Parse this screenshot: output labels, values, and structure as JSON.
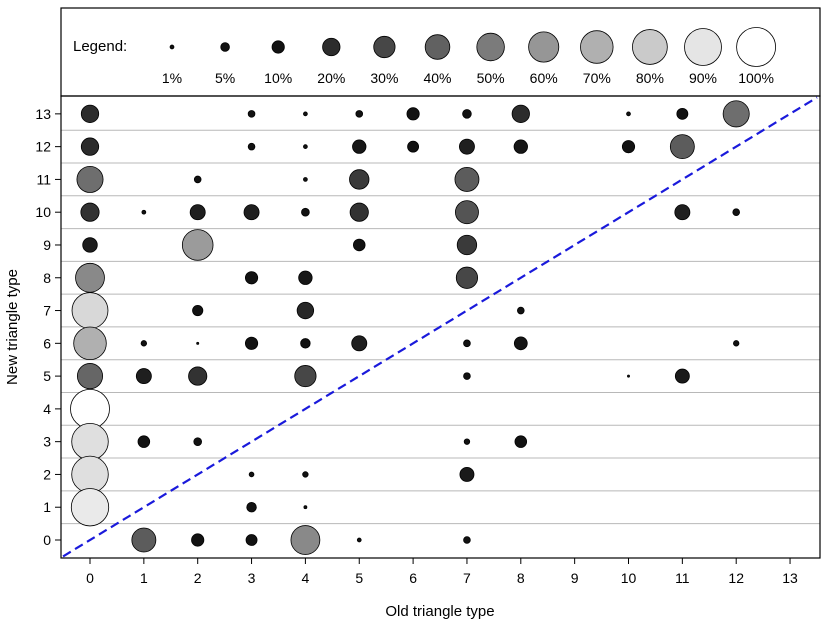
{
  "chart_data": {
    "type": "scatter",
    "xlabel": "Old triangle type",
    "ylabel": "New triangle type",
    "xlim": [
      -0.5,
      13.5
    ],
    "ylim": [
      -0.5,
      13.5
    ],
    "x_ticks": [
      0,
      1,
      2,
      3,
      4,
      5,
      6,
      7,
      8,
      9,
      10,
      11,
      12,
      13
    ],
    "y_ticks": [
      0,
      1,
      2,
      3,
      4,
      5,
      6,
      7,
      8,
      9,
      10,
      11,
      12,
      13
    ],
    "x_tick_labels": [
      "0",
      "1",
      "2",
      "3",
      "4",
      "5",
      "6",
      "7",
      "8",
      "9",
      "10",
      "11",
      "12",
      "13"
    ],
    "y_tick_labels": [
      "0",
      "1",
      "2",
      "3",
      "4",
      "5",
      "6",
      "7",
      "8",
      "9",
      "10",
      "11",
      "12",
      "13"
    ],
    "grid": "horizontal",
    "diagonal_line": {
      "style": "dashed",
      "color": "#1a1adb",
      "from": [
        -0.5,
        -0.5
      ],
      "to": [
        13.5,
        13.5
      ]
    },
    "legend": {
      "title": "Legend:",
      "placement": "top",
      "entries": [
        {
          "label": "1%",
          "value": 1
        },
        {
          "label": "5%",
          "value": 5
        },
        {
          "label": "10%",
          "value": 10
        },
        {
          "label": "20%",
          "value": 20
        },
        {
          "label": "30%",
          "value": 30
        },
        {
          "label": "40%",
          "value": 40
        },
        {
          "label": "50%",
          "value": 50
        },
        {
          "label": "60%",
          "value": 60
        },
        {
          "label": "70%",
          "value": 70
        },
        {
          "label": "80%",
          "value": 80
        },
        {
          "label": "90%",
          "value": 90
        },
        {
          "label": "100%",
          "value": 100
        }
      ]
    },
    "encoding": "bubble area and grayscale both scale with percentage",
    "points": [
      {
        "x": 0,
        "y": 13,
        "v": 20
      },
      {
        "x": 3,
        "y": 13,
        "v": 3
      },
      {
        "x": 4,
        "y": 13,
        "v": 1
      },
      {
        "x": 5,
        "y": 13,
        "v": 3
      },
      {
        "x": 6,
        "y": 13,
        "v": 10
      },
      {
        "x": 7,
        "y": 13,
        "v": 5
      },
      {
        "x": 8,
        "y": 13,
        "v": 20
      },
      {
        "x": 10,
        "y": 13,
        "v": 1
      },
      {
        "x": 11,
        "y": 13,
        "v": 8
      },
      {
        "x": 12,
        "y": 13,
        "v": 45
      },
      {
        "x": 0,
        "y": 12,
        "v": 20
      },
      {
        "x": 3,
        "y": 12,
        "v": 3
      },
      {
        "x": 4,
        "y": 12,
        "v": 1
      },
      {
        "x": 5,
        "y": 12,
        "v": 12
      },
      {
        "x": 6,
        "y": 12,
        "v": 8
      },
      {
        "x": 7,
        "y": 12,
        "v": 15
      },
      {
        "x": 8,
        "y": 12,
        "v": 12
      },
      {
        "x": 10,
        "y": 12,
        "v": 10
      },
      {
        "x": 11,
        "y": 12,
        "v": 38
      },
      {
        "x": 0,
        "y": 11,
        "v": 45
      },
      {
        "x": 2,
        "y": 11,
        "v": 3
      },
      {
        "x": 4,
        "y": 11,
        "v": 1
      },
      {
        "x": 5,
        "y": 11,
        "v": 25
      },
      {
        "x": 7,
        "y": 11,
        "v": 38
      },
      {
        "x": 0,
        "y": 10,
        "v": 22
      },
      {
        "x": 1,
        "y": 10,
        "v": 1
      },
      {
        "x": 2,
        "y": 10,
        "v": 15
      },
      {
        "x": 3,
        "y": 10,
        "v": 15
      },
      {
        "x": 4,
        "y": 10,
        "v": 4
      },
      {
        "x": 5,
        "y": 10,
        "v": 22
      },
      {
        "x": 7,
        "y": 10,
        "v": 35
      },
      {
        "x": 11,
        "y": 10,
        "v": 15
      },
      {
        "x": 12,
        "y": 10,
        "v": 3
      },
      {
        "x": 0,
        "y": 9,
        "v": 14
      },
      {
        "x": 2,
        "y": 9,
        "v": 62
      },
      {
        "x": 5,
        "y": 9,
        "v": 9
      },
      {
        "x": 7,
        "y": 9,
        "v": 25
      },
      {
        "x": 0,
        "y": 8,
        "v": 55
      },
      {
        "x": 3,
        "y": 8,
        "v": 10
      },
      {
        "x": 4,
        "y": 8,
        "v": 12
      },
      {
        "x": 7,
        "y": 8,
        "v": 30
      },
      {
        "x": 0,
        "y": 7,
        "v": 85
      },
      {
        "x": 2,
        "y": 7,
        "v": 7
      },
      {
        "x": 4,
        "y": 7,
        "v": 18
      },
      {
        "x": 8,
        "y": 7,
        "v": 3
      },
      {
        "x": 0,
        "y": 6,
        "v": 70
      },
      {
        "x": 1,
        "y": 6,
        "v": 2
      },
      {
        "x": 2,
        "y": 6,
        "v": 0.3
      },
      {
        "x": 3,
        "y": 6,
        "v": 10
      },
      {
        "x": 4,
        "y": 6,
        "v": 6
      },
      {
        "x": 5,
        "y": 6,
        "v": 15
      },
      {
        "x": 7,
        "y": 6,
        "v": 3
      },
      {
        "x": 8,
        "y": 6,
        "v": 11
      },
      {
        "x": 12,
        "y": 6,
        "v": 2
      },
      {
        "x": 0,
        "y": 5,
        "v": 42
      },
      {
        "x": 1,
        "y": 5,
        "v": 15
      },
      {
        "x": 2,
        "y": 5,
        "v": 22
      },
      {
        "x": 4,
        "y": 5,
        "v": 30
      },
      {
        "x": 7,
        "y": 5,
        "v": 3
      },
      {
        "x": 10,
        "y": 5,
        "v": 0.3
      },
      {
        "x": 11,
        "y": 5,
        "v": 13
      },
      {
        "x": 0,
        "y": 4,
        "v": 100
      },
      {
        "x": 0,
        "y": 3,
        "v": 88
      },
      {
        "x": 1,
        "y": 3,
        "v": 9
      },
      {
        "x": 2,
        "y": 3,
        "v": 4
      },
      {
        "x": 7,
        "y": 3,
        "v": 2
      },
      {
        "x": 8,
        "y": 3,
        "v": 9
      },
      {
        "x": 0,
        "y": 2,
        "v": 88
      },
      {
        "x": 3,
        "y": 2,
        "v": 1.5
      },
      {
        "x": 4,
        "y": 2,
        "v": 2
      },
      {
        "x": 7,
        "y": 2,
        "v": 13
      },
      {
        "x": 0,
        "y": 1,
        "v": 92
      },
      {
        "x": 3,
        "y": 1,
        "v": 6
      },
      {
        "x": 4,
        "y": 1,
        "v": 0.6
      },
      {
        "x": 1,
        "y": 0,
        "v": 38
      },
      {
        "x": 2,
        "y": 0,
        "v": 10
      },
      {
        "x": 3,
        "y": 0,
        "v": 8
      },
      {
        "x": 4,
        "y": 0,
        "v": 55
      },
      {
        "x": 5,
        "y": 0,
        "v": 1
      },
      {
        "x": 7,
        "y": 0,
        "v": 3
      }
    ]
  }
}
